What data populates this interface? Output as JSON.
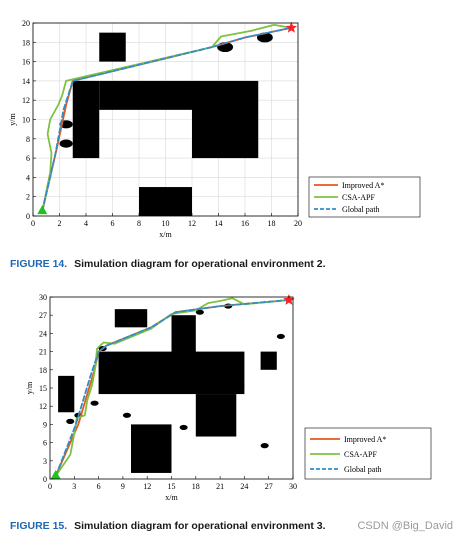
{
  "figure14": {
    "label": "FIGURE 14.",
    "caption": "Simulation diagram for operational environment 2."
  },
  "figure15": {
    "label": "FIGURE 15.",
    "caption": "Simulation diagram for operational environment 3."
  },
  "watermark": "CSDN @Big_David",
  "colors": {
    "improved": "#e4581e",
    "csa": "#7dc242",
    "global": "#2f8ec9",
    "obstacle": "#000000",
    "grid": "#d9d9d9",
    "start": "#22c022",
    "goal": "#ff2020"
  },
  "chart_data": [
    {
      "type": "line",
      "xlabel": "x/m",
      "ylabel": "y/m",
      "xlim": [
        0,
        20
      ],
      "ylim": [
        0,
        20
      ],
      "xticks": [
        0,
        2,
        4,
        6,
        8,
        10,
        12,
        14,
        16,
        18,
        20
      ],
      "yticks": [
        0,
        2,
        4,
        6,
        8,
        10,
        12,
        14,
        16,
        18,
        20
      ],
      "grid": true,
      "legend_position": "bottom-right",
      "start": [
        0.7,
        0.5
      ],
      "goal": [
        19.5,
        19.5
      ],
      "obstacles_rect": [
        {
          "x0": 5,
          "y0": 16,
          "x1": 7,
          "y1": 19
        },
        {
          "x0": 3,
          "y0": 6,
          "x1": 5,
          "y1": 14
        },
        {
          "x0": 5,
          "y0": 11,
          "x1": 12,
          "y1": 14
        },
        {
          "x0": 12,
          "y0": 6,
          "x1": 17,
          "y1": 14
        },
        {
          "x0": 8,
          "y0": 0,
          "x1": 12,
          "y1": 3
        }
      ],
      "obstacles_circle": [
        {
          "cx": 2.5,
          "cy": 9.5,
          "r": 0.5
        },
        {
          "cx": 2.5,
          "cy": 7.5,
          "r": 0.5
        },
        {
          "cx": 14.5,
          "cy": 17.5,
          "r": 0.6
        },
        {
          "cx": 17.5,
          "cy": 18.5,
          "r": 0.6
        }
      ],
      "series": [
        {
          "name": "Improved A*",
          "color": "#e4581e",
          "style": "solid",
          "x": [
            0.7,
            1.8,
            2.5,
            3.0,
            13.5,
            16.0,
            19.5
          ],
          "y": [
            0.5,
            7.0,
            11.5,
            14.0,
            17.5,
            18.5,
            19.5
          ]
        },
        {
          "name": "CSA-APF",
          "color": "#7dc242",
          "style": "solid",
          "x": [
            0.7,
            1.3,
            1.4,
            1.1,
            1.3,
            1.9,
            2.2,
            2.5,
            13.5,
            14.2,
            16.5,
            18.2,
            19.5
          ],
          "y": [
            0.5,
            4.5,
            6.5,
            8.5,
            10.0,
            11.5,
            12.5,
            14.0,
            17.5,
            18.6,
            19.2,
            19.8,
            19.5
          ]
        },
        {
          "name": "Global path",
          "color": "#2f8ec9",
          "style": "dashed",
          "x": [
            0.7,
            1.7,
            2.3,
            3.0,
            13.5,
            16.0,
            19.5
          ],
          "y": [
            0.5,
            6.5,
            11.0,
            14.0,
            17.5,
            18.5,
            19.5
          ]
        }
      ]
    },
    {
      "type": "line",
      "xlabel": "x/m",
      "ylabel": "y/m",
      "xlim": [
        0,
        30
      ],
      "ylim": [
        0,
        30
      ],
      "xticks": [
        0,
        3,
        6,
        9,
        12,
        15,
        18,
        21,
        24,
        27,
        30
      ],
      "yticks": [
        0,
        3,
        6,
        9,
        12,
        15,
        18,
        21,
        24,
        27,
        30
      ],
      "grid": false,
      "legend_position": "bottom-right",
      "start": [
        0.7,
        0.5
      ],
      "goal": [
        29.5,
        29.5
      ],
      "obstacles_rect": [
        {
          "x0": 1,
          "y0": 11,
          "x1": 3,
          "y1": 17
        },
        {
          "x0": 8,
          "y0": 25,
          "x1": 12,
          "y1": 28
        },
        {
          "x0": 15,
          "y0": 17,
          "x1": 18,
          "y1": 27
        },
        {
          "x0": 6,
          "y0": 14,
          "x1": 24,
          "y1": 21
        },
        {
          "x0": 18,
          "y0": 7,
          "x1": 23,
          "y1": 14
        },
        {
          "x0": 10,
          "y0": 1,
          "x1": 15,
          "y1": 9
        },
        {
          "x0": 26,
          "y0": 18,
          "x1": 28,
          "y1": 21
        }
      ],
      "obstacles_circle": [
        {
          "cx": 2.5,
          "cy": 9.5,
          "r": 0.5
        },
        {
          "cx": 3.5,
          "cy": 10.5,
          "r": 0.5
        },
        {
          "cx": 5.5,
          "cy": 12.5,
          "r": 0.5
        },
        {
          "cx": 6.5,
          "cy": 21.5,
          "r": 0.5
        },
        {
          "cx": 9.5,
          "cy": 10.5,
          "r": 0.5
        },
        {
          "cx": 16.5,
          "cy": 8.5,
          "r": 0.5
        },
        {
          "cx": 18.5,
          "cy": 27.5,
          "r": 0.5
        },
        {
          "cx": 22.0,
          "cy": 28.5,
          "r": 0.5
        },
        {
          "cx": 23.5,
          "cy": 15.5,
          "r": 0.5
        },
        {
          "cx": 28.5,
          "cy": 23.5,
          "r": 0.5
        },
        {
          "cx": 26.5,
          "cy": 5.5,
          "r": 0.5
        }
      ],
      "series": [
        {
          "name": "Improved A*",
          "color": "#e4581e",
          "style": "solid",
          "x": [
            0.7,
            3.5,
            5.5,
            6.0,
            7.0,
            12.5,
            15.5,
            21.0,
            29.5
          ],
          "y": [
            0.5,
            9.0,
            18.0,
            21.0,
            22.0,
            25.0,
            27.5,
            28.5,
            29.5
          ]
        },
        {
          "name": "CSA-APF",
          "color": "#7dc242",
          "style": "solid",
          "x": [
            0.7,
            2.5,
            3.0,
            3.3,
            4.3,
            4.6,
            5.2,
            5.6,
            5.8,
            6.6,
            8.0,
            12.5,
            15.0,
            18.0,
            19.5,
            21.2,
            22.5,
            24.0,
            29.5
          ],
          "y": [
            0.5,
            4.0,
            7.5,
            10.0,
            10.5,
            13.0,
            15.5,
            18.5,
            21.5,
            22.5,
            22.3,
            24.8,
            27.2,
            27.8,
            29.0,
            29.4,
            29.8,
            28.8,
            29.5
          ]
        },
        {
          "name": "Global path",
          "color": "#2f8ec9",
          "style": "dashed",
          "x": [
            0.7,
            3.2,
            5.0,
            6.0,
            7.0,
            12.5,
            15.5,
            21.0,
            29.5
          ],
          "y": [
            0.5,
            9.0,
            17.0,
            21.0,
            22.0,
            25.0,
            27.5,
            28.5,
            29.5
          ]
        }
      ]
    }
  ]
}
